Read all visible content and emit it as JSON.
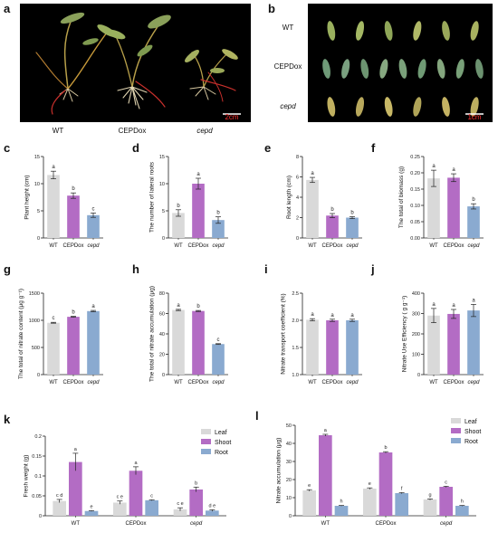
{
  "colors": {
    "WT": "#d9d9d9",
    "CEPDox": "#b36cc4",
    "cepd": "#8aaad0",
    "Leaf": "#d9d9d9",
    "Shoot": "#b36cc4",
    "Root": "#8aaad0",
    "axis": "#222222",
    "errorbar": "#222222"
  },
  "photos": {
    "a": {
      "panel_label": "a",
      "labels": [
        "WT",
        "CEPDox",
        "cepd"
      ],
      "italic": [
        false,
        false,
        true
      ],
      "scale_bar": "2cm"
    },
    "b": {
      "panel_label": "b",
      "labels": [
        "WT",
        "CEPDox",
        "cepd"
      ],
      "italic": [
        false,
        false,
        true
      ],
      "scale_bar": "1cm"
    }
  },
  "chart_data": [
    {
      "id": "c",
      "type": "bar",
      "panel_label": "c",
      "categories": [
        "WT",
        "CEPDox",
        "cepd"
      ],
      "cat_italic": [
        false,
        false,
        true
      ],
      "values": [
        11.6,
        7.8,
        4.2
      ],
      "errors": [
        0.7,
        0.5,
        0.4
      ],
      "letters": [
        "a",
        "b",
        "c"
      ],
      "ylabel": "Plant height (cm)",
      "ylim": [
        0,
        15
      ],
      "yticks": [
        0,
        5,
        10,
        15
      ],
      "ytick_labels": [
        "0",
        "5",
        "10",
        "15"
      ]
    },
    {
      "id": "d",
      "type": "bar",
      "panel_label": "d",
      "categories": [
        "WT",
        "CEPDox",
        "cepd"
      ],
      "cat_italic": [
        false,
        false,
        true
      ],
      "values": [
        4.6,
        10.0,
        3.3
      ],
      "errors": [
        0.6,
        1.0,
        0.6
      ],
      "letters": [
        "b",
        "a",
        "b"
      ],
      "ylabel": "The number of lateral roots",
      "ylim": [
        0,
        15
      ],
      "yticks": [
        0,
        5,
        10,
        15
      ],
      "ytick_labels": [
        "0",
        "5",
        "10",
        "15"
      ]
    },
    {
      "id": "e",
      "type": "bar",
      "panel_label": "e",
      "categories": [
        "WT",
        "CEPDox",
        "cepd"
      ],
      "cat_italic": [
        false,
        false,
        true
      ],
      "values": [
        5.7,
        2.2,
        2.0
      ],
      "errors": [
        0.25,
        0.2,
        0.1
      ],
      "letters": [
        "a",
        "b",
        "b"
      ],
      "ylabel": "Root length (cm)",
      "ylim": [
        0,
        8
      ],
      "yticks": [
        0,
        2,
        4,
        6,
        8
      ],
      "ytick_labels": [
        "0",
        "2",
        "4",
        "6",
        "8"
      ]
    },
    {
      "id": "f",
      "type": "bar",
      "panel_label": "f",
      "categories": [
        "WT",
        "CEPDox",
        "cepd"
      ],
      "cat_italic": [
        false,
        false,
        true
      ],
      "values": [
        0.183,
        0.185,
        0.097
      ],
      "errors": [
        0.025,
        0.012,
        0.008
      ],
      "letters": [
        "a",
        "a",
        "b"
      ],
      "ylabel": "The total of biomass (g)",
      "ylim": [
        0,
        0.25
      ],
      "yticks": [
        0,
        0.05,
        0.1,
        0.15,
        0.2,
        0.25
      ],
      "ytick_labels": [
        "0.00",
        "0.05",
        "0.10",
        "0.15",
        "0.20",
        "0.25"
      ]
    },
    {
      "id": "g",
      "type": "bar",
      "panel_label": "g",
      "categories": [
        "WT",
        "CEPDox",
        "cepd"
      ],
      "cat_italic": [
        false,
        false,
        true
      ],
      "values": [
        955,
        1065,
        1170
      ],
      "errors": [
        8,
        8,
        12
      ],
      "letters": [
        "c",
        "b",
        "a"
      ],
      "ylabel": "The total of nitrate content (μg g⁻¹)",
      "ylim": [
        0,
        1500
      ],
      "yticks": [
        0,
        500,
        1000,
        1500
      ],
      "ytick_labels": [
        "0",
        "500",
        "1000",
        "1500"
      ]
    },
    {
      "id": "h",
      "type": "bar",
      "panel_label": "h",
      "categories": [
        "WT",
        "CEPDox",
        "cepd"
      ],
      "cat_italic": [
        false,
        false,
        true
      ],
      "values": [
        63.5,
        62.5,
        30
      ],
      "errors": [
        0.6,
        0.5,
        0.4
      ],
      "letters": [
        "a",
        "b",
        "c"
      ],
      "ylabel": "The total of nitrate accumulation (μg)",
      "ylim": [
        0,
        80
      ],
      "yticks": [
        0,
        20,
        40,
        60,
        80
      ],
      "ytick_labels": [
        "0",
        "20",
        "40",
        "60",
        "80"
      ]
    },
    {
      "id": "i",
      "type": "bar",
      "panel_label": "i",
      "categories": [
        "WT",
        "CEPDox",
        "cepd"
      ],
      "cat_italic": [
        false,
        false,
        true
      ],
      "values": [
        2.01,
        2.0,
        2.0
      ],
      "errors": [
        0.02,
        0.02,
        0.02
      ],
      "letters": [
        "a",
        "a",
        "a"
      ],
      "ylabel": "Nitrate transport coefficient (%)",
      "ylim": [
        1.0,
        2.5
      ],
      "yticks": [
        1.0,
        1.5,
        2.0,
        2.5
      ],
      "ytick_labels": [
        "1.0",
        "1.5",
        "2.0",
        "2.5"
      ]
    },
    {
      "id": "j",
      "type": "bar",
      "panel_label": "j",
      "categories": [
        "WT",
        "CEPDox",
        "cepd"
      ],
      "cat_italic": [
        false,
        false,
        true
      ],
      "values": [
        290,
        298,
        315
      ],
      "errors": [
        35,
        22,
        30
      ],
      "letters": [
        "a",
        "a",
        "a"
      ],
      "ylabel": "Nitrate Use Efficiency ( g g⁻¹)",
      "ylim": [
        0,
        400
      ],
      "yticks": [
        0,
        100,
        200,
        300,
        400
      ],
      "ytick_labels": [
        "0",
        "100",
        "200",
        "300",
        "400"
      ]
    },
    {
      "id": "k",
      "type": "bar",
      "panel_label": "k",
      "categories": [
        "WT",
        "CEPDox",
        "cepd"
      ],
      "cat_italic": [
        false,
        false,
        true
      ],
      "series": [
        {
          "name": "Leaf",
          "values": [
            0.037,
            0.033,
            0.016
          ],
          "errors": [
            0.004,
            0.004,
            0.004
          ],
          "letters": [
            "c d",
            "c e",
            "c e"
          ]
        },
        {
          "name": "Shoot",
          "values": [
            0.135,
            0.113,
            0.066
          ],
          "errors": [
            0.022,
            0.01,
            0.006
          ],
          "letters": [
            "a",
            "a",
            "b"
          ]
        },
        {
          "name": "Root",
          "values": [
            0.012,
            0.039,
            0.013
          ],
          "errors": [
            0.001,
            0.001,
            0.002
          ],
          "letters": [
            "e",
            "c",
            "d e"
          ]
        }
      ],
      "ylabel": "Fresh weight (g)",
      "ylim": [
        0,
        0.2
      ],
      "yticks": [
        0,
        0.05,
        0.1,
        0.15,
        0.2
      ],
      "ytick_labels": [
        "0",
        "0.05",
        "0.1",
        "0.15",
        "0.2"
      ],
      "legend": "top-right"
    },
    {
      "id": "l",
      "type": "bar",
      "panel_label": "l",
      "categories": [
        "WT",
        "CEPDox",
        "cepd"
      ],
      "cat_italic": [
        false,
        false,
        true
      ],
      "series": [
        {
          "name": "Leaf",
          "values": [
            14,
            15,
            9
          ],
          "errors": [
            0.4,
            0.4,
            0.3
          ],
          "letters": [
            "e",
            "e",
            "g"
          ]
        },
        {
          "name": "Shoot",
          "values": [
            44.5,
            35,
            16
          ],
          "errors": [
            0.5,
            0.4,
            0.3
          ],
          "letters": [
            "a",
            "b",
            "c"
          ]
        },
        {
          "name": "Root",
          "values": [
            5.5,
            12.5,
            5.5
          ],
          "errors": [
            0.2,
            0.3,
            0.2
          ],
          "letters": [
            "h",
            "f",
            "h"
          ]
        }
      ],
      "ylabel": "Nitrate accumulation (μg)",
      "ylim": [
        0,
        50
      ],
      "yticks": [
        0,
        10,
        20,
        30,
        40,
        50
      ],
      "ytick_labels": [
        "0",
        "10",
        "20",
        "30",
        "40",
        "50"
      ],
      "legend": "top-right"
    }
  ]
}
